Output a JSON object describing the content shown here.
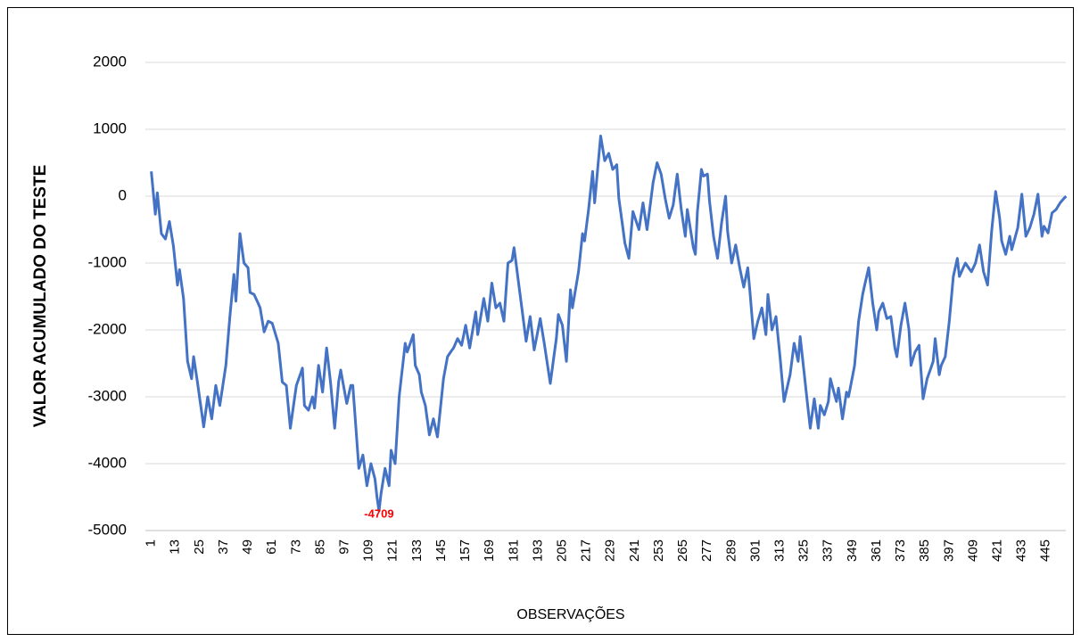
{
  "chart_data": {
    "type": "line",
    "ylabel": "VALOR ACUMULADO DO TESTE",
    "xlabel": "OBSERVAÇÕES",
    "ylim": [
      -5000,
      2000
    ],
    "yticks": [
      -5000,
      -4000,
      -3000,
      -2000,
      -1000,
      0,
      1000,
      2000
    ],
    "grid": true,
    "label_color": "#ff0000",
    "labeled_point": 113,
    "categories": [
      1,
      null,
      null,
      null,
      null,
      null,
      null,
      null,
      null,
      null,
      null,
      null,
      13,
      null,
      null,
      null,
      null,
      null,
      null,
      null,
      null,
      null,
      null,
      null,
      25,
      null,
      null,
      null,
      null,
      null,
      null,
      null,
      null,
      null,
      null,
      null,
      37,
      null,
      null,
      null,
      null,
      null,
      null,
      null,
      null,
      null,
      null,
      null,
      49,
      null,
      null,
      null,
      null,
      null,
      null,
      null,
      null,
      null,
      null,
      null,
      61,
      null,
      null,
      null,
      null,
      null,
      null,
      null,
      null,
      null,
      null,
      null,
      73,
      null,
      null,
      null,
      null,
      null,
      null,
      null,
      null,
      null,
      null,
      null,
      85,
      null,
      null,
      null,
      null,
      null,
      null,
      null,
      null,
      null,
      null,
      null,
      97,
      null,
      null,
      null,
      null,
      null,
      null,
      null,
      null,
      null,
      null,
      null,
      109,
      null,
      null,
      null,
      null,
      null,
      null,
      null,
      null,
      null,
      null,
      null,
      121,
      null,
      null,
      null,
      null,
      null,
      null,
      null,
      null,
      null,
      null,
      null,
      133,
      null,
      null,
      null,
      null,
      null,
      null,
      null,
      null,
      null,
      null,
      null,
      145,
      null,
      null,
      null,
      null,
      null,
      null,
      null,
      null,
      null,
      null,
      null,
      157,
      null,
      null,
      null,
      null,
      null,
      null,
      null,
      null,
      null,
      null,
      null,
      169,
      null,
      null,
      null,
      null,
      null,
      null,
      null,
      null,
      null,
      null,
      null,
      181,
      null,
      null,
      null,
      null,
      null,
      null,
      null,
      null,
      null,
      null,
      null,
      193,
      null,
      null,
      null,
      null,
      null,
      null,
      null,
      null,
      null,
      null,
      null,
      205,
      null,
      null,
      null,
      null,
      null,
      null,
      null,
      null,
      null,
      null,
      null,
      217,
      null,
      null,
      null,
      null,
      null,
      null,
      null,
      null,
      null,
      null,
      null,
      229,
      null,
      null,
      null,
      null,
      null,
      null,
      null,
      null,
      null,
      null,
      null,
      241,
      null,
      null,
      null,
      null,
      null,
      null,
      null,
      null,
      null,
      null,
      null,
      253,
      null,
      null,
      null,
      null,
      null,
      null,
      null,
      null,
      null,
      null,
      null,
      265,
      null,
      null,
      null,
      null,
      null,
      null,
      null,
      null,
      null,
      null,
      null,
      277,
      null,
      null,
      null,
      null,
      null,
      null,
      null,
      null,
      null,
      null,
      null,
      289,
      null,
      null,
      null,
      null,
      null,
      null,
      null,
      null,
      null,
      null,
      null,
      301,
      null,
      null,
      null,
      null,
      null,
      null,
      null,
      null,
      null,
      null,
      null,
      313,
      null,
      null,
      null,
      null,
      null,
      null,
      null,
      null,
      null,
      null,
      null,
      325,
      null,
      null,
      null,
      null,
      null,
      null,
      null,
      null,
      null,
      null,
      null,
      337,
      null,
      null,
      null,
      null,
      null,
      null,
      null,
      null,
      null,
      null,
      null,
      349,
      null,
      null,
      null,
      null,
      null,
      null,
      null,
      null,
      null,
      null,
      null,
      361,
      null,
      null,
      null,
      null,
      null,
      null,
      null,
      null,
      null,
      null,
      null,
      373,
      null,
      null,
      null,
      null,
      null,
      null,
      null,
      null,
      null,
      null,
      null,
      385,
      null,
      null,
      null,
      null,
      null,
      null,
      null,
      null,
      null,
      null,
      null,
      397,
      null,
      null,
      null,
      null,
      null,
      null,
      null,
      null,
      null,
      null,
      null,
      409,
      null,
      null,
      null,
      null,
      null,
      null,
      null,
      null,
      null,
      null,
      null,
      421,
      null,
      null,
      null,
      null,
      null,
      null,
      null,
      null,
      null,
      null,
      null,
      433,
      null,
      null,
      null,
      null,
      null,
      null,
      null,
      null,
      null,
      null,
      null,
      445,
      null,
      null,
      null,
      null,
      null,
      null,
      null,
      null,
      null,
      null
    ],
    "series": [
      {
        "color": "#4472c4",
        "values": [
          370,
          50,
          -270,
          50,
          -255,
          -560,
          -600,
          -640,
          -510,
          -380,
          -565,
          -750,
          -1040,
          -1330,
          -1100,
          -1315,
          -1530,
          -2000,
          -2470,
          -2600,
          -2730,
          -2400,
          -2600,
          -2800,
          -3020,
          -3230,
          -3450,
          -3225,
          -3000,
          -3165,
          -3330,
          -3080,
          -2830,
          -2980,
          -3130,
          -2930,
          -2730,
          -2530,
          -2165,
          -1800,
          -1485,
          -1170,
          -1570,
          -1065,
          -560,
          -780,
          -1000,
          -1035,
          -1070,
          -1440,
          -1455,
          -1470,
          -1535,
          -1600,
          -1670,
          -1850,
          -2030,
          -1950,
          -1870,
          -1885,
          -1900,
          -2000,
          -2100,
          -2200,
          -2490,
          -2780,
          -2805,
          -2830,
          -3150,
          -3470,
          -3255,
          -3040,
          -2830,
          -2745,
          -2660,
          -2570,
          -3130,
          -3165,
          -3200,
          -3100,
          -3000,
          -3170,
          -2850,
          -2530,
          -2730,
          -2930,
          -2600,
          -2270,
          -2530,
          -2800,
          -3135,
          -3470,
          -3120,
          -2770,
          -2600,
          -2770,
          -2935,
          -3100,
          -2965,
          -2830,
          -2830,
          -3240,
          -3655,
          -4070,
          -3970,
          -3870,
          -4100,
          -4330,
          -4165,
          -4000,
          -4115,
          -4230,
          -4500,
          -4709,
          -4450,
          -4260,
          -4070,
          -4200,
          -4330,
          -3800,
          -3900,
          -4000,
          -3500,
          -3000,
          -2730,
          -2470,
          -2200,
          -2330,
          -2245,
          -2160,
          -2070,
          -2530,
          -2600,
          -2670,
          -2930,
          -3030,
          -3130,
          -3350,
          -3570,
          -3450,
          -3330,
          -3465,
          -3600,
          -3310,
          -3020,
          -2730,
          -2565,
          -2400,
          -2355,
          -2310,
          -2270,
          -2200,
          -2130,
          -2180,
          -2230,
          -2080,
          -1930,
          -2100,
          -2270,
          -2090,
          -1910,
          -1730,
          -2070,
          -1890,
          -1710,
          -1530,
          -1700,
          -1870,
          -1585,
          -1300,
          -1485,
          -1670,
          -1635,
          -1600,
          -1735,
          -1870,
          -1435,
          -1000,
          -980,
          -960,
          -770,
          -1000,
          -1235,
          -1470,
          -1700,
          -1935,
          -2170,
          -1985,
          -1800,
          -2050,
          -2300,
          -2145,
          -1990,
          -1830,
          -2015,
          -2200,
          -2400,
          -2600,
          -2800,
          -2575,
          -2350,
          -2130,
          -1770,
          -1850,
          -1930,
          -2200,
          -2470,
          -1935,
          -1400,
          -1670,
          -1490,
          -1310,
          -1130,
          -845,
          -560,
          -670,
          -435,
          -200,
          85,
          370,
          -100,
          230,
          570,
          900,
          715,
          530,
          585,
          640,
          520,
          400,
          435,
          470,
          -30,
          -250,
          -470,
          -700,
          -815,
          -930,
          -580,
          -230,
          -320,
          -410,
          -500,
          -300,
          -100,
          -300,
          -500,
          -270,
          -35,
          200,
          350,
          500,
          415,
          330,
          150,
          -30,
          -180,
          -330,
          -230,
          -130,
          100,
          330,
          65,
          -200,
          -400,
          -600,
          -200,
          -390,
          -580,
          -770,
          -870,
          -235,
          80,
          400,
          300,
          315,
          330,
          -70,
          -335,
          -600,
          -765,
          -930,
          -665,
          -400,
          -200,
          0,
          -530,
          -765,
          -1000,
          -865,
          -730,
          -900,
          -1070,
          -1215,
          -1360,
          -1215,
          -1070,
          -1400,
          -1765,
          -2130,
          -2000,
          -1870,
          -1770,
          -1670,
          -1870,
          -2070,
          -1470,
          -1735,
          -2000,
          -1900,
          -1800,
          -2100,
          -2400,
          -2735,
          -3070,
          -2935,
          -2800,
          -2670,
          -2435,
          -2200,
          -2335,
          -2470,
          -2100,
          -2375,
          -2650,
          -2930,
          -3200,
          -3470,
          -3250,
          -3030,
          -3250,
          -3470,
          -3130,
          -3200,
          -3270,
          -3170,
          -3070,
          -2730,
          -2845,
          -2960,
          -3070,
          -2870,
          -3100,
          -3330,
          -3130,
          -2930,
          -3000,
          -2845,
          -2690,
          -2530,
          -2200,
          -1870,
          -1670,
          -1470,
          -1330,
          -1200,
          -1070,
          -1335,
          -1600,
          -1800,
          -2000,
          -1730,
          -1665,
          -1600,
          -1715,
          -1830,
          -1815,
          -1800,
          -2035,
          -2270,
          -2400,
          -2165,
          -1930,
          -1765,
          -1600,
          -1800,
          -2000,
          -2530,
          -2430,
          -2330,
          -2280,
          -2230,
          -2630,
          -3030,
          -2880,
          -2730,
          -2645,
          -2560,
          -2470,
          -2130,
          -2400,
          -2670,
          -2530,
          -2465,
          -2400,
          -2135,
          -1870,
          -1535,
          -1200,
          -1065,
          -930,
          -1200,
          -1135,
          -1065,
          -1000,
          -1045,
          -1090,
          -1130,
          -1065,
          -1000,
          -865,
          -730,
          -930,
          -1130,
          -1230,
          -1330,
          -930,
          -530,
          -230,
          70,
          -130,
          -330,
          -670,
          -770,
          -870,
          -735,
          -600,
          -800,
          -690,
          -580,
          -470,
          -220,
          30,
          -285,
          -600,
          -535,
          -470,
          -370,
          -270,
          -120,
          30,
          -285,
          -600,
          -450,
          -500,
          -550,
          -400,
          -250,
          -225,
          -200,
          -150,
          -100,
          -65,
          -30,
          0
        ]
      }
    ]
  }
}
